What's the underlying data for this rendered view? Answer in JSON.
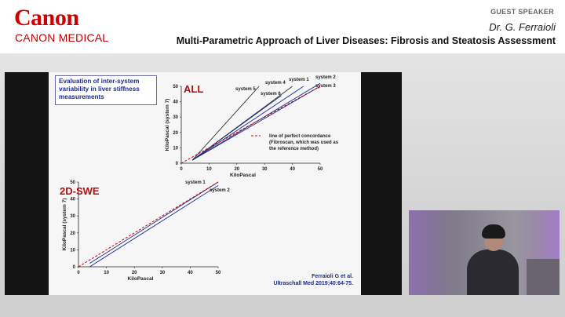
{
  "header": {
    "logo": "Canon",
    "logo_subtitle": "CANON MEDICAL",
    "guest_label": "GUEST SPEAKER",
    "speaker": "Dr. G. Ferraioli",
    "talk_title": "Multi-Parametric Approach of Liver Diseases: Fibrosis and Steatosis Assessment"
  },
  "slide": {
    "box_text": "Evaluation of inter-system variability in liver stiffness measurements",
    "citation_line1": "Ferraioli G et al.",
    "citation_line2": "Ultraschall Med 2019;40:64-75.",
    "legend_line1": "line of perfect concordance",
    "legend_line2": "(Fibroscan, which was used as",
    "legend_line3": "the reference method)"
  },
  "colors": {
    "brand_red": "#cc0000",
    "title_red": "#b01010",
    "navy": "#1c2c8a"
  },
  "chart_data": [
    {
      "type": "line",
      "title": "ALL",
      "xlabel": "KiloPascal",
      "ylabel": "KiloPascal (system 7)",
      "xlim": [
        0,
        50
      ],
      "ylim": [
        0,
        50
      ],
      "xticks": [
        0,
        10,
        20,
        30,
        40,
        50
      ],
      "yticks": [
        0,
        10,
        20,
        30,
        40,
        50
      ],
      "series": [
        {
          "name": "system 5",
          "x": [
            4,
            28
          ],
          "y": [
            2,
            50
          ]
        },
        {
          "name": "system 4",
          "x": [
            4,
            40
          ],
          "y": [
            2,
            50
          ]
        },
        {
          "name": "system 6",
          "x": [
            4,
            36
          ],
          "y": [
            2,
            44
          ]
        },
        {
          "name": "system 1",
          "x": [
            4,
            44
          ],
          "y": [
            2,
            50
          ]
        },
        {
          "name": "system 2",
          "x": [
            4,
            50
          ],
          "y": [
            2,
            52
          ]
        },
        {
          "name": "system 3",
          "x": [
            4,
            50
          ],
          "y": [
            2,
            50
          ]
        }
      ],
      "reference_line": {
        "x": [
          0,
          50
        ],
        "y": [
          0,
          50
        ]
      }
    },
    {
      "type": "line",
      "title": "2D-SWE",
      "xlabel": "KiloPascal",
      "ylabel": "KiloPascal (system 7)",
      "xlim": [
        0,
        50
      ],
      "ylim": [
        0,
        50
      ],
      "xticks": [
        0,
        10,
        20,
        30,
        40,
        50
      ],
      "yticks": [
        0,
        10,
        20,
        30,
        40,
        50
      ],
      "series": [
        {
          "name": "system 1",
          "x": [
            4,
            50
          ],
          "y": [
            2,
            50
          ]
        },
        {
          "name": "system 2",
          "x": [
            4,
            50
          ],
          "y": [
            0,
            48
          ]
        }
      ],
      "reference_line": {
        "x": [
          0,
          50
        ],
        "y": [
          0,
          50
        ]
      }
    }
  ]
}
